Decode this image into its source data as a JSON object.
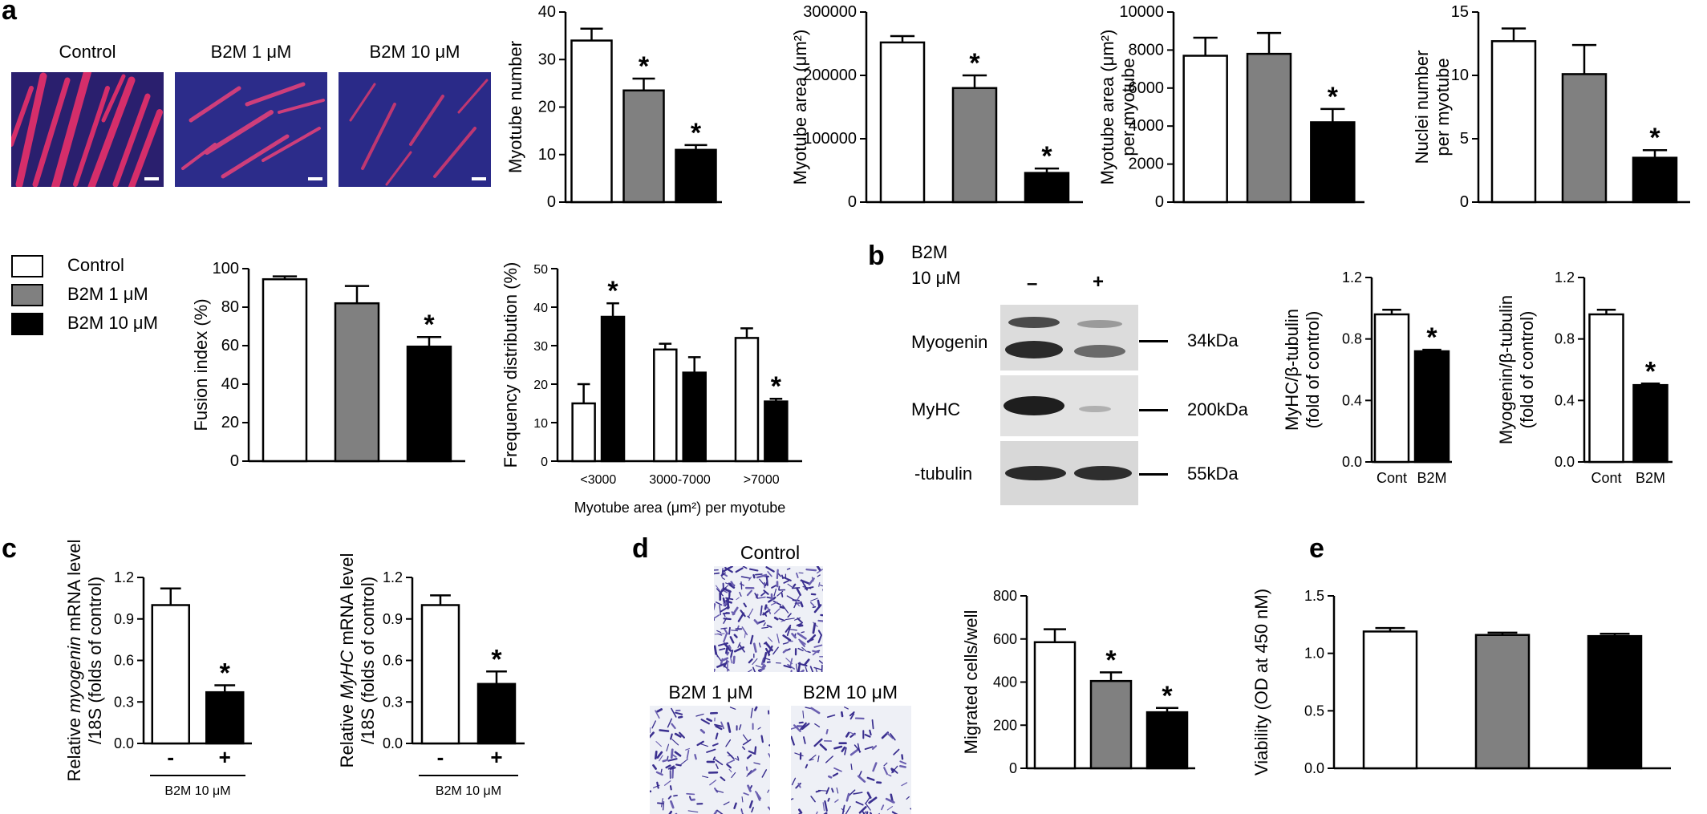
{
  "panel_labels": [
    "a",
    "b",
    "c",
    "d",
    "e"
  ],
  "colors": {
    "control": "#ffffff",
    "b2m_1": "#808080",
    "b2m_10": "#000000",
    "outline": "#000000"
  },
  "micrographs_a": [
    {
      "label": "Control",
      "style": "fluorescence-dense"
    },
    {
      "label": "B2M 1 μM",
      "style": "fluorescence-medium"
    },
    {
      "label": "B2M 10 μM",
      "style": "fluorescence-sparse"
    }
  ],
  "legend": {
    "items": [
      {
        "label": "Control",
        "color": "#ffffff"
      },
      {
        "label": "B2M 1 μM",
        "color": "#808080"
      },
      {
        "label": "B2M 10 μM",
        "color": "#000000"
      }
    ]
  },
  "western_b": {
    "treatment_label_1": "B2M",
    "treatment_label_2": "10 μM",
    "lane_minus": "–",
    "lane_plus": "+",
    "bands": [
      {
        "protein": "Myogenin",
        "size": "34kDa"
      },
      {
        "protein": "MyHC",
        "size": "200kDa"
      },
      {
        "protein": "-tubulin",
        "size": "55kDa"
      }
    ]
  },
  "migration_d": {
    "images": [
      {
        "label": "Control"
      },
      {
        "label": "B2M 1 μM"
      },
      {
        "label": "B2M 10 μM"
      }
    ]
  },
  "chart_data": [
    {
      "id": "myotube-number",
      "type": "bar",
      "categories": [
        "Control",
        "B2M 1 μM",
        "B2M 10 μM"
      ],
      "values": [
        34,
        23.5,
        11
      ],
      "errors": [
        2.5,
        2.5,
        1
      ],
      "ylabel": "Myotube number",
      "ylim": [
        0,
        40
      ],
      "yticks": [
        "0",
        "10",
        "20",
        "30",
        "40"
      ],
      "significant": [
        false,
        true,
        true
      ],
      "xticklabels": []
    },
    {
      "id": "myotube-area",
      "type": "bar",
      "categories": [
        "Control",
        "B2M 1 μM",
        "B2M 10 μM"
      ],
      "values": [
        252000,
        180000,
        46000
      ],
      "errors": [
        10000,
        20000,
        7000
      ],
      "ylabel": "Myotube area (μm²)",
      "ylim": [
        0,
        300000
      ],
      "yticks": [
        "0",
        "100000",
        "200000",
        "300000"
      ],
      "significant": [
        false,
        true,
        true
      ],
      "xticklabels": []
    },
    {
      "id": "myotube-area-per-myotube",
      "type": "bar",
      "categories": [
        "Control",
        "B2M 1 μM",
        "B2M 10 μM"
      ],
      "values": [
        7700,
        7800,
        4200
      ],
      "errors": [
        950,
        1100,
        700
      ],
      "ylabel": "Myotube area (μm²)",
      "ylabel2": "per myotube",
      "ylim": [
        0,
        10000
      ],
      "yticks": [
        "0",
        "2000",
        "4000",
        "6000",
        "8000",
        "10000"
      ],
      "significant": [
        false,
        false,
        true
      ],
      "xticklabels": []
    },
    {
      "id": "nuclei-per-myotube",
      "type": "bar",
      "categories": [
        "Control",
        "B2M 1 μM",
        "B2M 10 μM"
      ],
      "values": [
        12.7,
        10.1,
        3.5
      ],
      "errors": [
        1,
        2.3,
        0.6
      ],
      "ylabel": "Nuclei number",
      "ylabel2": "per myotube",
      "ylim": [
        0,
        15
      ],
      "yticks": [
        "0",
        "5",
        "10",
        "15"
      ],
      "significant": [
        false,
        false,
        true
      ],
      "xticklabels": []
    },
    {
      "id": "fusion-index",
      "type": "bar",
      "categories": [
        "Control",
        "B2M 1 μM",
        "B2M 10 μM"
      ],
      "values": [
        94.5,
        82,
        59.5
      ],
      "errors": [
        1.5,
        9,
        5
      ],
      "ylabel": "Fusion index (%)",
      "ylim": [
        0,
        100
      ],
      "yticks": [
        "0",
        "20",
        "40",
        "60",
        "80",
        "100"
      ],
      "significant": [
        false,
        false,
        true
      ],
      "xticklabels": []
    },
    {
      "id": "frequency-distribution",
      "type": "bar",
      "categories": [
        "<3000",
        "3000-7000",
        ">7000"
      ],
      "series": [
        {
          "values": [
            15,
            29,
            32
          ],
          "errors": [
            5,
            1.5,
            2.5
          ],
          "color": "#ffffff"
        },
        {
          "values": [
            37.5,
            23,
            15.5
          ],
          "errors": [
            3.5,
            4,
            0.7
          ],
          "color": "#000000"
        }
      ],
      "ylabel": "Frequency distribution (%)",
      "xlabel": "Myotube area (μm²) per myotube",
      "ylim": [
        0,
        50
      ],
      "yticks": [
        "0",
        "10",
        "20",
        "30",
        "40",
        "50"
      ],
      "significant": [
        [
          false,
          false,
          false
        ],
        [
          true,
          false,
          true
        ]
      ]
    },
    {
      "id": "myhc-tubulin",
      "type": "bar",
      "categories": [
        "Cont",
        "B2M"
      ],
      "values": [
        0.96,
        0.72
      ],
      "errors": [
        0.03,
        0.01
      ],
      "ylabel": "MyHC/β-tubulin",
      "ylabel2": "(fold of control)",
      "ylim": [
        0,
        1.2
      ],
      "yticks": [
        "0.0",
        "0.4",
        "0.8",
        "1.2"
      ],
      "significant": [
        false,
        true
      ],
      "colors": [
        "#ffffff",
        "#000000"
      ],
      "xticklabels": [
        "Cont",
        "B2M"
      ]
    },
    {
      "id": "myogenin-tubulin",
      "type": "bar",
      "categories": [
        "Cont",
        "B2M"
      ],
      "values": [
        0.96,
        0.5
      ],
      "errors": [
        0.03,
        0.01
      ],
      "ylabel": "Myogenin/β-tubulin",
      "ylabel2": "(fold of control)",
      "ylim": [
        0,
        1.2
      ],
      "yticks": [
        "0.0",
        "0.4",
        "0.8",
        "1.2"
      ],
      "significant": [
        false,
        true
      ],
      "colors": [
        "#ffffff",
        "#000000"
      ],
      "xticklabels": [
        "Cont",
        "B2M"
      ]
    },
    {
      "id": "myogenin-mrna",
      "type": "bar",
      "categories": [
        "-",
        "+"
      ],
      "values": [
        1.0,
        0.37
      ],
      "errors": [
        0.12,
        0.05
      ],
      "ylabel": "Relative myogenin mRNA level",
      "ylabel_italic": "myogenin",
      "ylabel2": "/18S (folds of control)",
      "xlabel": "B2M 10 μM",
      "ylim": [
        0,
        1.2
      ],
      "yticks": [
        "0.0",
        "0.3",
        "0.6",
        "0.9",
        "1.2"
      ],
      "significant": [
        false,
        true
      ],
      "colors": [
        "#ffffff",
        "#000000"
      ],
      "xticklabels": [
        "-",
        "+"
      ]
    },
    {
      "id": "myhc-mrna",
      "type": "bar",
      "categories": [
        "-",
        "+"
      ],
      "values": [
        1.0,
        0.43
      ],
      "errors": [
        0.07,
        0.09
      ],
      "ylabel": "Relative MyHC mRNA level",
      "ylabel_italic": "MyHC",
      "ylabel2": "/18S (folds of control)",
      "xlabel": "B2M 10 μM",
      "ylim": [
        0,
        1.2
      ],
      "yticks": [
        "0.0",
        "0.3",
        "0.6",
        "0.9",
        "1.2"
      ],
      "significant": [
        false,
        true
      ],
      "colors": [
        "#ffffff",
        "#000000"
      ],
      "xticklabels": [
        "-",
        "+"
      ]
    },
    {
      "id": "migrated-cells",
      "type": "bar",
      "categories": [
        "Control",
        "B2M 1 μM",
        "B2M 10 μM"
      ],
      "values": [
        585,
        405,
        260
      ],
      "errors": [
        60,
        40,
        20
      ],
      "ylabel": "Migrated cells/well",
      "ylim": [
        0,
        800
      ],
      "yticks": [
        "0",
        "200",
        "400",
        "600",
        "800"
      ],
      "significant": [
        false,
        true,
        true
      ],
      "xticklabels": []
    },
    {
      "id": "viability",
      "type": "bar",
      "categories": [
        "Control",
        "B2M 1 μM",
        "B2M 10 μM"
      ],
      "values": [
        1.19,
        1.16,
        1.15
      ],
      "errors": [
        0.03,
        0.02,
        0.02
      ],
      "ylabel": "Viability (OD at 450 nM)",
      "ylim": [
        0,
        1.5
      ],
      "yticks": [
        "0.0",
        "0.5",
        "1.0",
        "1.5"
      ],
      "significant": [
        false,
        false,
        false
      ],
      "xticklabels": []
    }
  ]
}
